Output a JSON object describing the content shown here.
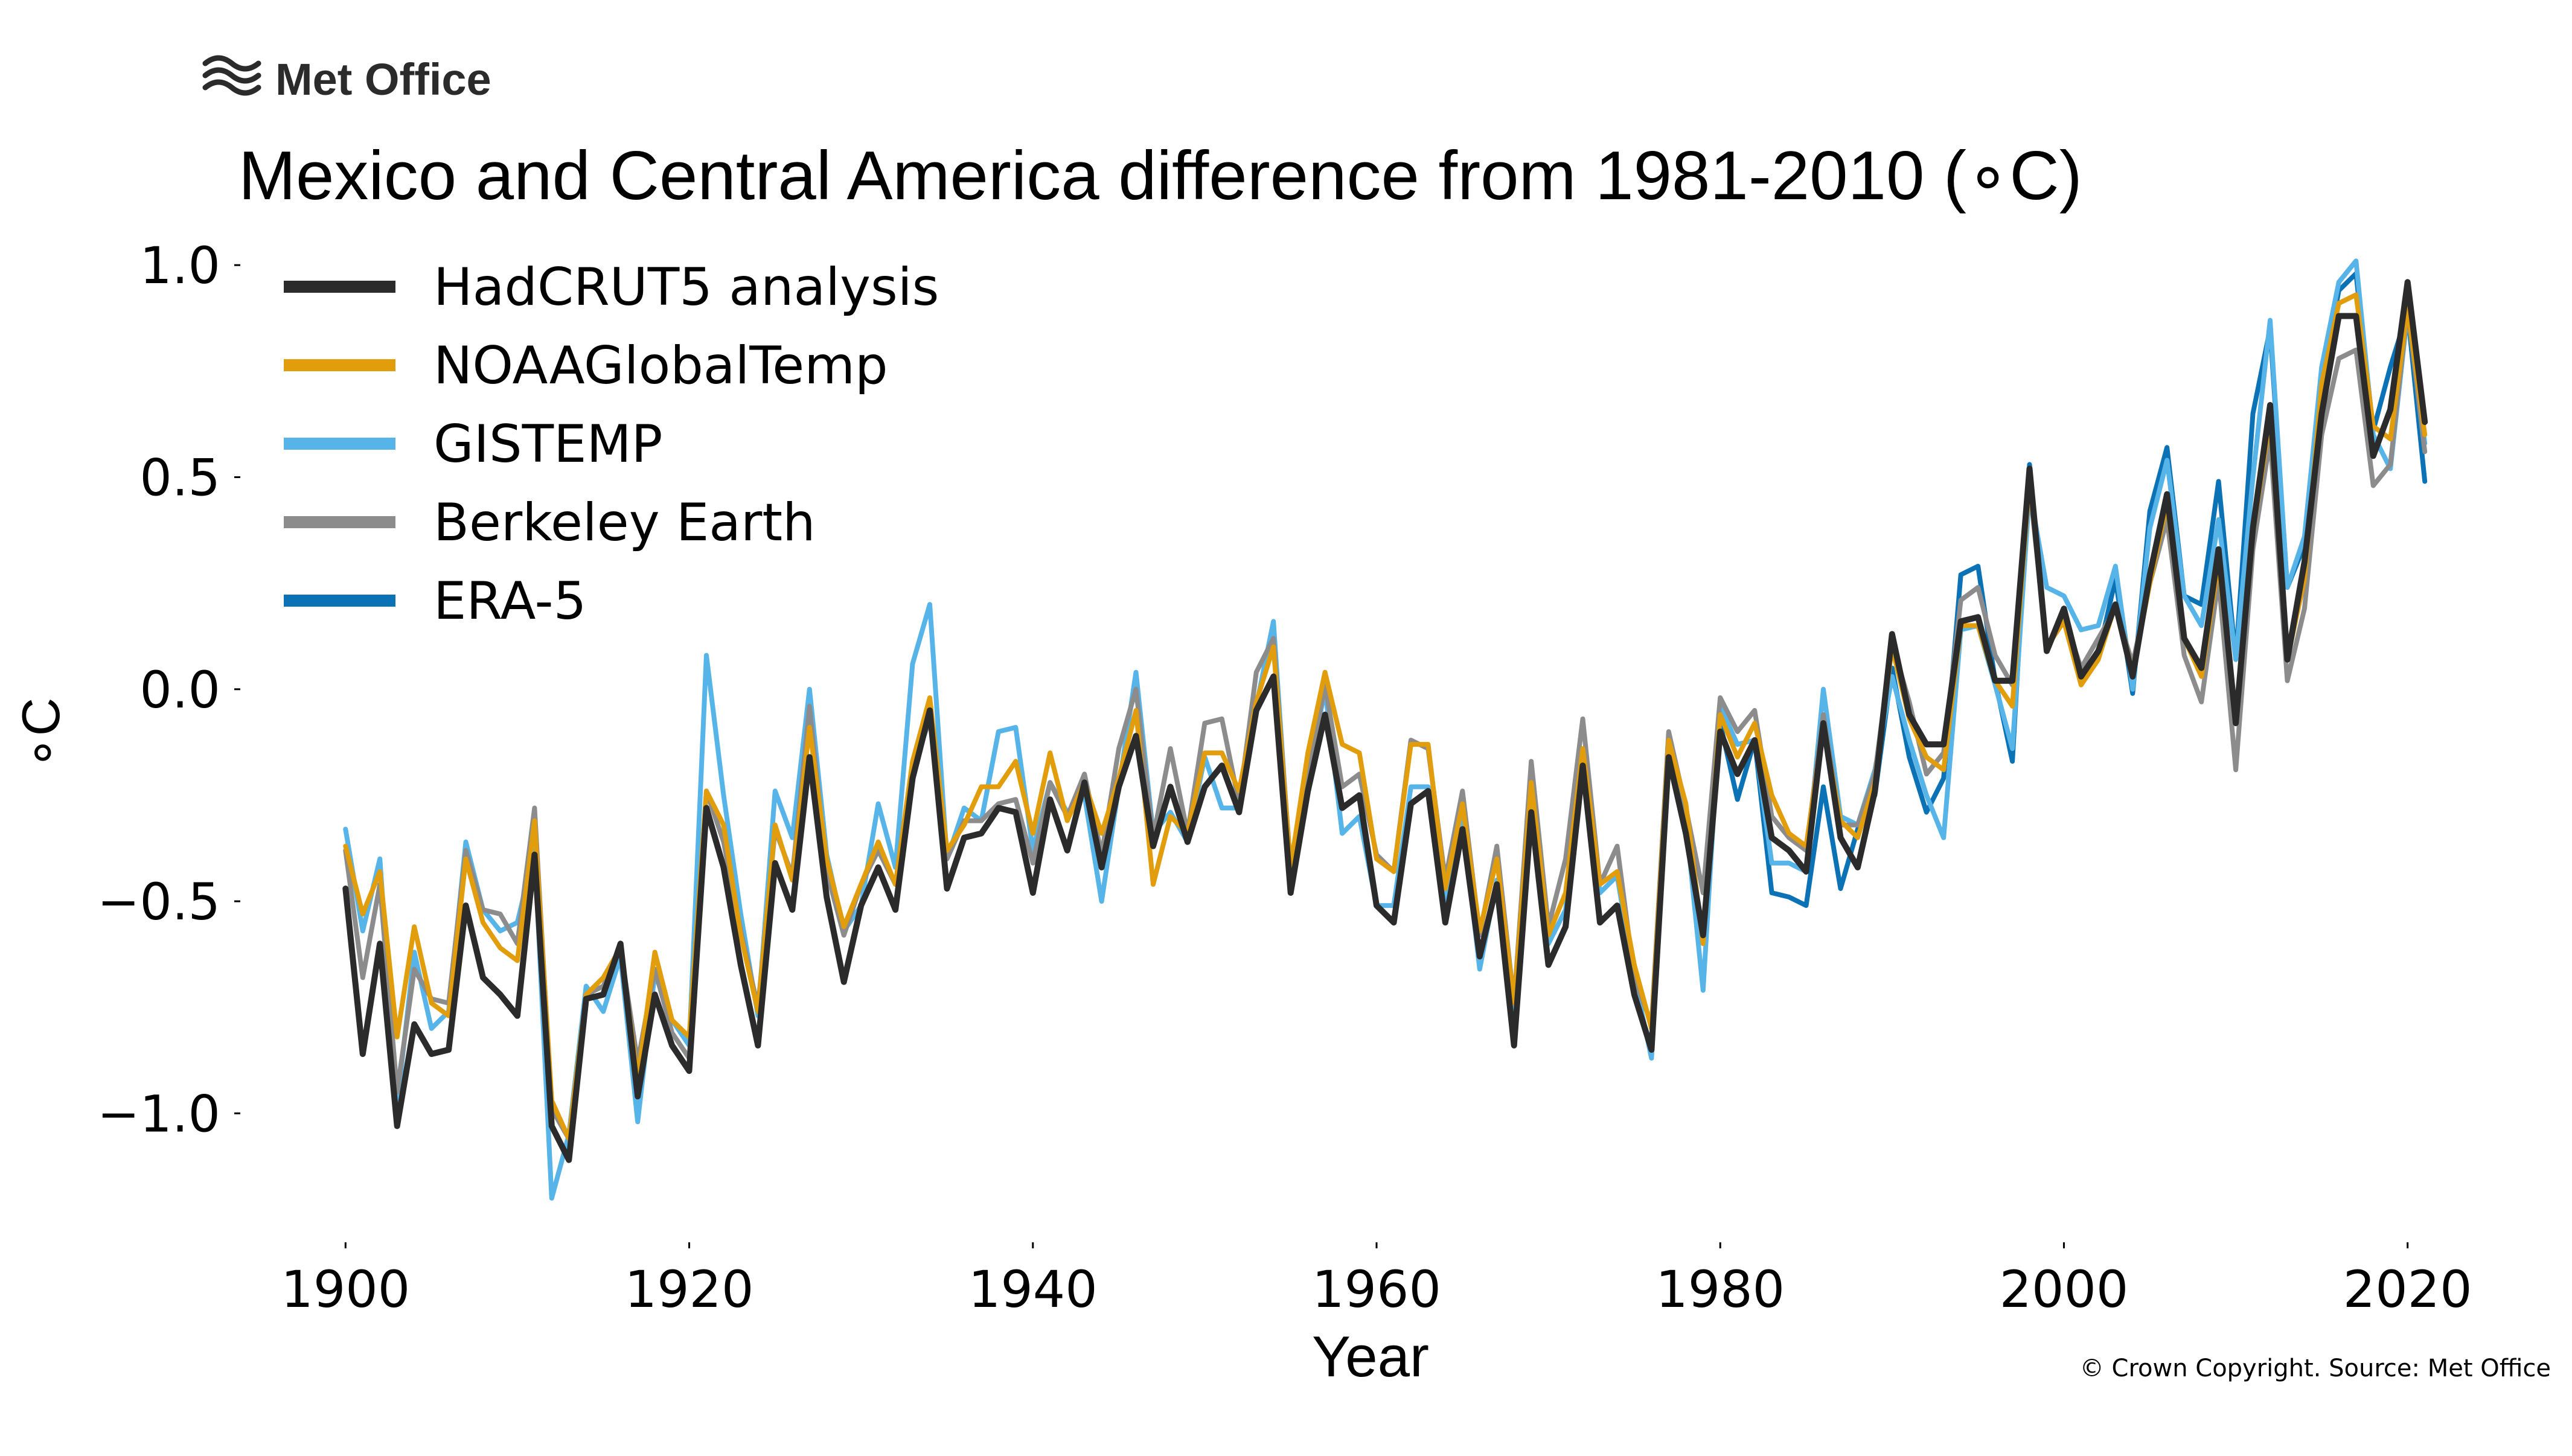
{
  "logo": {
    "text": "Met Office",
    "icon": "met-office-wave-icon"
  },
  "copyright": "© Crown Copyright. Source: Met Office",
  "colors": {
    "HadCRUT5 analysis": "#2b2b2b",
    "NOAAGlobalTemp": "#e19d0c",
    "GISTEMP": "#56b4e9",
    "Berkeley Earth": "#8c8c8c",
    "ERA-5": "#0b72b5"
  },
  "chart_data": {
    "type": "line",
    "title": "Mexico and Central America difference from 1981-2010 (∘C)",
    "xlabel": "Year",
    "ylabel": "∘C",
    "xlim": [
      1895,
      2025
    ],
    "ylim": [
      -1.25,
      1.07
    ],
    "x_ticks": [
      1900,
      1920,
      1940,
      1960,
      1980,
      2000,
      2020
    ],
    "x_tick_labels": [
      "1900",
      "1920",
      "1940",
      "1960",
      "1980",
      "2000",
      "2020"
    ],
    "y_ticks": [
      1.0,
      0.5,
      0.0,
      -0.5,
      -1.0
    ],
    "y_tick_labels": [
      "1.0",
      "0.5",
      "0.0",
      "−0.5",
      "−1.0"
    ],
    "grid": false,
    "legend_position": "top-left",
    "series": [
      {
        "name": "HadCRUT5 analysis",
        "x_start": 1900,
        "values": [
          -0.47,
          -0.86,
          -0.6,
          -1.03,
          -0.79,
          -0.86,
          -0.85,
          -0.51,
          -0.68,
          -0.72,
          -0.77,
          -0.39,
          -1.03,
          -1.11,
          -0.73,
          -0.72,
          -0.6,
          -0.96,
          -0.72,
          -0.84,
          -0.9,
          -0.28,
          -0.42,
          -0.65,
          -0.84,
          -0.41,
          -0.52,
          -0.16,
          -0.49,
          -0.69,
          -0.51,
          -0.42,
          -0.52,
          -0.21,
          -0.05,
          -0.47,
          -0.35,
          -0.34,
          -0.28,
          -0.29,
          -0.48,
          -0.26,
          -0.38,
          -0.22,
          -0.42,
          -0.23,
          -0.11,
          -0.37,
          -0.23,
          -0.36,
          -0.23,
          -0.18,
          -0.29,
          -0.05,
          0.03,
          -0.48,
          -0.24,
          -0.06,
          -0.28,
          -0.25,
          -0.51,
          -0.55,
          -0.27,
          -0.24,
          -0.55,
          -0.33,
          -0.63,
          -0.46,
          -0.84,
          -0.29,
          -0.65,
          -0.56,
          -0.18,
          -0.55,
          -0.51,
          -0.72,
          -0.85,
          -0.16,
          -0.34,
          -0.58,
          -0.1,
          -0.2,
          -0.12,
          -0.35,
          -0.38,
          -0.43,
          -0.08,
          -0.35,
          -0.42,
          -0.24,
          0.13,
          -0.06,
          -0.13,
          -0.13,
          0.16,
          0.17,
          0.02,
          0.02,
          0.52,
          0.09,
          0.19,
          0.03,
          0.09,
          0.2,
          0.03,
          0.27,
          0.46,
          0.12,
          0.05,
          0.33,
          -0.08,
          0.38,
          0.67,
          0.07,
          0.3,
          0.65,
          0.88,
          0.88,
          0.55,
          0.66,
          0.96,
          0.63
        ]
      },
      {
        "name": "NOAAGlobalTemp",
        "x_start": 1900,
        "values": [
          -0.37,
          -0.53,
          -0.43,
          -0.82,
          -0.56,
          -0.74,
          -0.77,
          -0.4,
          -0.55,
          -0.61,
          -0.64,
          -0.31,
          -0.97,
          -1.06,
          -0.72,
          -0.68,
          -0.61,
          -0.92,
          -0.62,
          -0.78,
          -0.82,
          -0.24,
          -0.32,
          -0.58,
          -0.76,
          -0.32,
          -0.45,
          -0.09,
          -0.4,
          -0.56,
          -0.46,
          -0.36,
          -0.46,
          -0.17,
          -0.02,
          -0.38,
          -0.32,
          -0.23,
          -0.23,
          -0.17,
          -0.34,
          -0.15,
          -0.31,
          -0.22,
          -0.34,
          -0.21,
          -0.05,
          -0.46,
          -0.3,
          -0.34,
          -0.15,
          -0.15,
          -0.24,
          -0.03,
          0.1,
          -0.42,
          -0.15,
          0.04,
          -0.13,
          -0.15,
          -0.4,
          -0.43,
          -0.13,
          -0.13,
          -0.47,
          -0.27,
          -0.57,
          -0.4,
          -0.74,
          -0.22,
          -0.58,
          -0.48,
          -0.14,
          -0.46,
          -0.43,
          -0.65,
          -0.8,
          -0.12,
          -0.27,
          -0.6,
          -0.06,
          -0.16,
          -0.08,
          -0.25,
          -0.34,
          -0.37,
          -0.09,
          -0.31,
          -0.35,
          -0.22,
          0.1,
          -0.07,
          -0.16,
          -0.19,
          0.15,
          0.15,
          0.02,
          -0.04,
          0.5,
          0.1,
          0.16,
          0.01,
          0.07,
          0.2,
          0.04,
          0.25,
          0.44,
          0.12,
          0.03,
          0.3,
          -0.07,
          0.37,
          0.64,
          0.07,
          0.26,
          0.72,
          0.91,
          0.93,
          0.62,
          0.59,
          0.9,
          0.6
        ]
      },
      {
        "name": "GISTEMP",
        "x_start": 1900,
        "values": [
          -0.33,
          -0.57,
          -0.4,
          -0.98,
          -0.62,
          -0.8,
          -0.76,
          -0.36,
          -0.52,
          -0.57,
          -0.55,
          -0.38,
          -1.2,
          -1.05,
          -0.7,
          -0.76,
          -0.63,
          -1.02,
          -0.67,
          -0.78,
          -0.84,
          0.08,
          -0.25,
          -0.53,
          -0.77,
          -0.24,
          -0.35,
          0.0,
          -0.39,
          -0.57,
          -0.51,
          -0.27,
          -0.42,
          0.06,
          0.2,
          -0.4,
          -0.28,
          -0.31,
          -0.1,
          -0.09,
          -0.38,
          -0.22,
          -0.29,
          -0.25,
          -0.5,
          -0.23,
          0.04,
          -0.34,
          -0.29,
          -0.36,
          -0.16,
          -0.28,
          -0.28,
          -0.04,
          0.16,
          -0.44,
          -0.21,
          0.0,
          -0.34,
          -0.3,
          -0.51,
          -0.51,
          -0.23,
          -0.23,
          -0.51,
          -0.31,
          -0.66,
          -0.45,
          -0.77,
          -0.21,
          -0.6,
          -0.52,
          -0.15,
          -0.48,
          -0.44,
          -0.68,
          -0.87,
          -0.14,
          -0.31,
          -0.71,
          -0.04,
          -0.13,
          -0.12,
          -0.41,
          -0.41,
          -0.43,
          0.0,
          -0.3,
          -0.32,
          -0.19,
          0.03,
          -0.12,
          -0.25,
          -0.35,
          0.14,
          0.15,
          0.01,
          -0.14,
          0.47,
          0.24,
          0.22,
          0.14,
          0.15,
          0.29,
          0.0,
          0.38,
          0.54,
          0.22,
          0.15,
          0.4,
          0.07,
          0.5,
          0.87,
          0.24,
          0.36,
          0.76,
          0.96,
          1.01,
          0.6,
          0.52,
          0.89,
          0.58
        ]
      },
      {
        "name": "Berkeley Earth",
        "x_start": 1900,
        "values": [
          -0.38,
          -0.68,
          -0.46,
          -0.95,
          -0.66,
          -0.73,
          -0.74,
          -0.38,
          -0.52,
          -0.53,
          -0.6,
          -0.28,
          -0.99,
          -1.06,
          -0.72,
          -0.7,
          -0.61,
          -0.88,
          -0.66,
          -0.81,
          -0.87,
          -0.24,
          -0.36,
          -0.57,
          -0.75,
          -0.33,
          -0.44,
          -0.04,
          -0.43,
          -0.58,
          -0.46,
          -0.38,
          -0.46,
          -0.19,
          -0.07,
          -0.4,
          -0.31,
          -0.31,
          -0.27,
          -0.26,
          -0.41,
          -0.22,
          -0.3,
          -0.2,
          -0.39,
          -0.14,
          0.0,
          -0.35,
          -0.14,
          -0.34,
          -0.08,
          -0.07,
          -0.27,
          0.04,
          0.12,
          -0.42,
          -0.2,
          0.01,
          -0.23,
          -0.2,
          -0.39,
          -0.43,
          -0.12,
          -0.14,
          -0.45,
          -0.24,
          -0.58,
          -0.37,
          -0.74,
          -0.17,
          -0.56,
          -0.4,
          -0.07,
          -0.46,
          -0.37,
          -0.68,
          -0.79,
          -0.1,
          -0.28,
          -0.48,
          -0.02,
          -0.1,
          -0.05,
          -0.3,
          -0.35,
          -0.38,
          -0.06,
          -0.32,
          -0.32,
          -0.2,
          0.11,
          -0.03,
          -0.2,
          -0.15,
          0.21,
          0.24,
          0.08,
          0.01,
          0.48,
          0.1,
          0.17,
          0.05,
          0.12,
          0.19,
          0.06,
          0.25,
          0.4,
          0.08,
          -0.03,
          0.26,
          -0.19,
          0.33,
          0.59,
          0.02,
          0.19,
          0.6,
          0.78,
          0.8,
          0.48,
          0.53,
          0.9,
          0.56
        ]
      },
      {
        "name": "ERA-5",
        "x_start": 1979,
        "values": [
          -0.6,
          -0.08,
          -0.26,
          -0.12,
          -0.48,
          -0.49,
          -0.51,
          -0.23,
          -0.47,
          -0.33,
          -0.25,
          0.05,
          -0.16,
          -0.29,
          -0.21,
          0.27,
          0.29,
          0.02,
          -0.17,
          0.53,
          0.09,
          0.19,
          0.04,
          0.08,
          0.26,
          -0.01,
          0.42,
          0.57,
          0.22,
          0.2,
          0.49,
          0.07,
          0.65,
          0.85,
          0.24,
          0.34,
          0.72,
          0.94,
          0.98,
          0.61,
          0.76,
          0.89,
          0.49
        ]
      }
    ]
  }
}
